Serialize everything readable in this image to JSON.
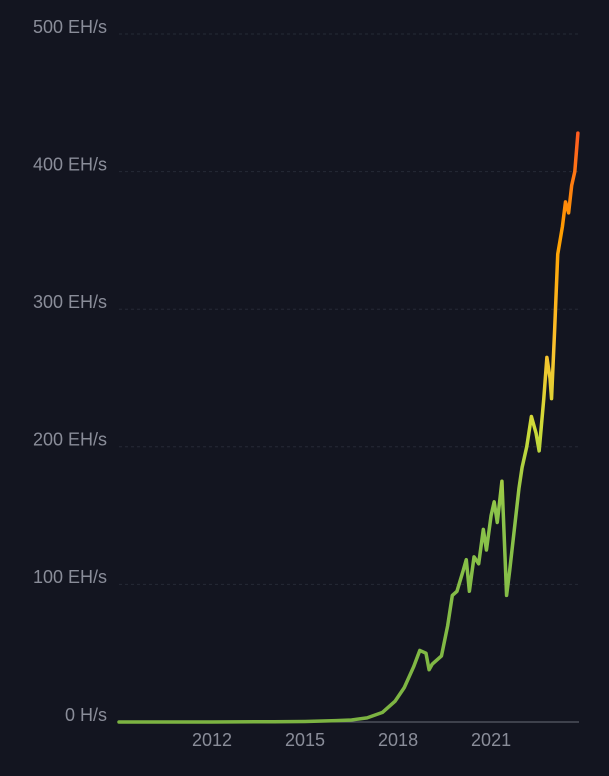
{
  "chart_data": {
    "type": "line",
    "x": [
      2009.0,
      2012.0,
      2014.0,
      2015.0,
      2016.0,
      2016.5,
      2017.0,
      2017.5,
      2017.9,
      2018.2,
      2018.5,
      2018.7,
      2018.9,
      2019.0,
      2019.1,
      2019.4,
      2019.6,
      2019.75,
      2019.9,
      2020.1,
      2020.2,
      2020.3,
      2020.45,
      2020.6,
      2020.75,
      2020.85,
      2021.0,
      2021.1,
      2021.2,
      2021.35,
      2021.45,
      2021.5,
      2021.6,
      2021.75,
      2021.9,
      2022.0,
      2022.15,
      2022.3,
      2022.45,
      2022.55,
      2022.7,
      2022.8,
      2022.9,
      2022.95,
      2023.05,
      2023.15,
      2023.3,
      2023.4,
      2023.5,
      2023.6,
      2023.7,
      2023.8
    ],
    "values": [
      0,
      0,
      0.2,
      0.4,
      1,
      1.5,
      3,
      7,
      15,
      25,
      40,
      52,
      50,
      38,
      42,
      48,
      70,
      92,
      95,
      110,
      118,
      95,
      120,
      115,
      140,
      125,
      150,
      160,
      145,
      175,
      120,
      92,
      110,
      140,
      170,
      185,
      200,
      222,
      210,
      197,
      235,
      265,
      250,
      235,
      285,
      340,
      360,
      378,
      370,
      390,
      400,
      428
    ],
    "color_stops": [
      {
        "value": 0,
        "color": "#7cb342"
      },
      {
        "value": 150,
        "color": "#8bc34a"
      },
      {
        "value": 210,
        "color": "#cddc39"
      },
      {
        "value": 270,
        "color": "#fbc02d"
      },
      {
        "value": 350,
        "color": "#ffa000"
      },
      {
        "value": 430,
        "color": "#ff5722"
      }
    ],
    "xlim": [
      2009,
      2023.9
    ],
    "xticks": [
      2012,
      2015,
      2018,
      2021
    ],
    "ylim": [
      0,
      500
    ],
    "yticks": [
      {
        "value": 0,
        "label": "0 H/s"
      },
      {
        "value": 100,
        "label": "100 EH/s"
      },
      {
        "value": 200,
        "label": "200 EH/s"
      },
      {
        "value": 300,
        "label": "300 EH/s"
      },
      {
        "value": 400,
        "label": "400 EH/s"
      },
      {
        "value": 500,
        "label": "500 EH/s"
      }
    ],
    "grid": true
  }
}
